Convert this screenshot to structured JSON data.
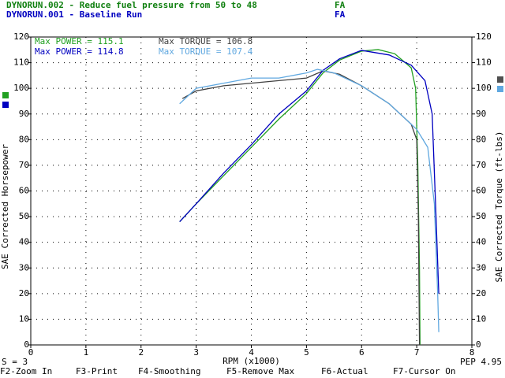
{
  "header": {
    "runs": [
      {
        "text": "DYNORUN.002 - Reduce fuel pressure from 50 to 48",
        "tag": "FA",
        "color": "#108010"
      },
      {
        "text": "DYNORUN.001 - Baseline Run",
        "tag": "FA",
        "color": "#0000c0"
      }
    ]
  },
  "chart_data": {
    "type": "line",
    "xlabel": "RPM (x1000)",
    "ylabel": "SAE Corrected Horsepower",
    "y2label": "SAE Corrected Torque (ft-lbs)",
    "xlim": [
      0,
      8
    ],
    "xticks": [
      0,
      1,
      2,
      3,
      4,
      5,
      6,
      7,
      8
    ],
    "ylim": [
      0,
      120
    ],
    "yticks": [
      0,
      10,
      20,
      30,
      40,
      50,
      60,
      70,
      80,
      90,
      100,
      110,
      120
    ],
    "y2lim": [
      0,
      120
    ],
    "y2ticks": [
      0,
      10,
      20,
      30,
      40,
      50,
      60,
      70,
      80,
      90,
      100,
      110,
      120
    ],
    "grid": true,
    "annotations": [
      {
        "text": "Max POWER = 115.1",
        "color": "#20a020"
      },
      {
        "text": "Max TORQUE = 106.8",
        "color": "#404040"
      },
      {
        "text": "Max POWER = 114.8",
        "color": "#0000c0"
      },
      {
        "text": "Max TORQUE = 107.4",
        "color": "#60a8e0"
      }
    ],
    "series": [
      {
        "name": "DYNORUN.002 Power",
        "color": "#20a020",
        "x": [
          2.7,
          3.0,
          3.5,
          4.0,
          4.5,
          5.0,
          5.3,
          5.6,
          6.0,
          6.3,
          6.6,
          6.9,
          6.98,
          7.02,
          7.05,
          7.06
        ],
        "values": [
          48,
          55,
          66,
          77,
          88,
          98,
          106,
          111,
          114.5,
          115.1,
          113.5,
          108,
          100,
          70,
          30,
          0
        ]
      },
      {
        "name": "DYNORUN.002 Torque",
        "color": "#404040",
        "axis": "y2",
        "x": [
          2.75,
          3.0,
          3.5,
          4.0,
          4.5,
          5.0,
          5.3,
          5.6,
          6.0,
          6.5,
          6.9,
          7.0,
          7.03,
          7.05
        ],
        "values": [
          96,
          99,
          101,
          102,
          103,
          104,
          106.8,
          105.5,
          101,
          94,
          86,
          80,
          50,
          0
        ]
      },
      {
        "name": "DYNORUN.001 Power",
        "color": "#0000c0",
        "x": [
          2.7,
          3.0,
          3.5,
          4.0,
          4.5,
          5.0,
          5.3,
          5.6,
          6.0,
          6.5,
          6.9,
          7.15,
          7.28,
          7.35,
          7.4
        ],
        "values": [
          48,
          55,
          67,
          78,
          90,
          99,
          107,
          111.5,
          114.8,
          113,
          109,
          103,
          90,
          50,
          20
        ]
      },
      {
        "name": "DYNORUN.001 Torque",
        "color": "#60a8e0",
        "axis": "y2",
        "x": [
          2.7,
          3.0,
          3.5,
          4.0,
          4.5,
          5.0,
          5.2,
          5.5,
          6.0,
          6.5,
          7.0,
          7.2,
          7.32,
          7.38,
          7.4
        ],
        "values": [
          94,
          100,
          102,
          104,
          104,
          106,
          107.4,
          106,
          101,
          94,
          84,
          77,
          55,
          20,
          5
        ]
      }
    ]
  },
  "status": {
    "left": "S = 3",
    "right": "PEP 4.95"
  },
  "function_keys": [
    "F2-Zoom In",
    "F3-Print",
    "F4-Smoothing",
    "F5-Remove Max",
    "F6-Actual",
    "F7-Cursor On"
  ]
}
